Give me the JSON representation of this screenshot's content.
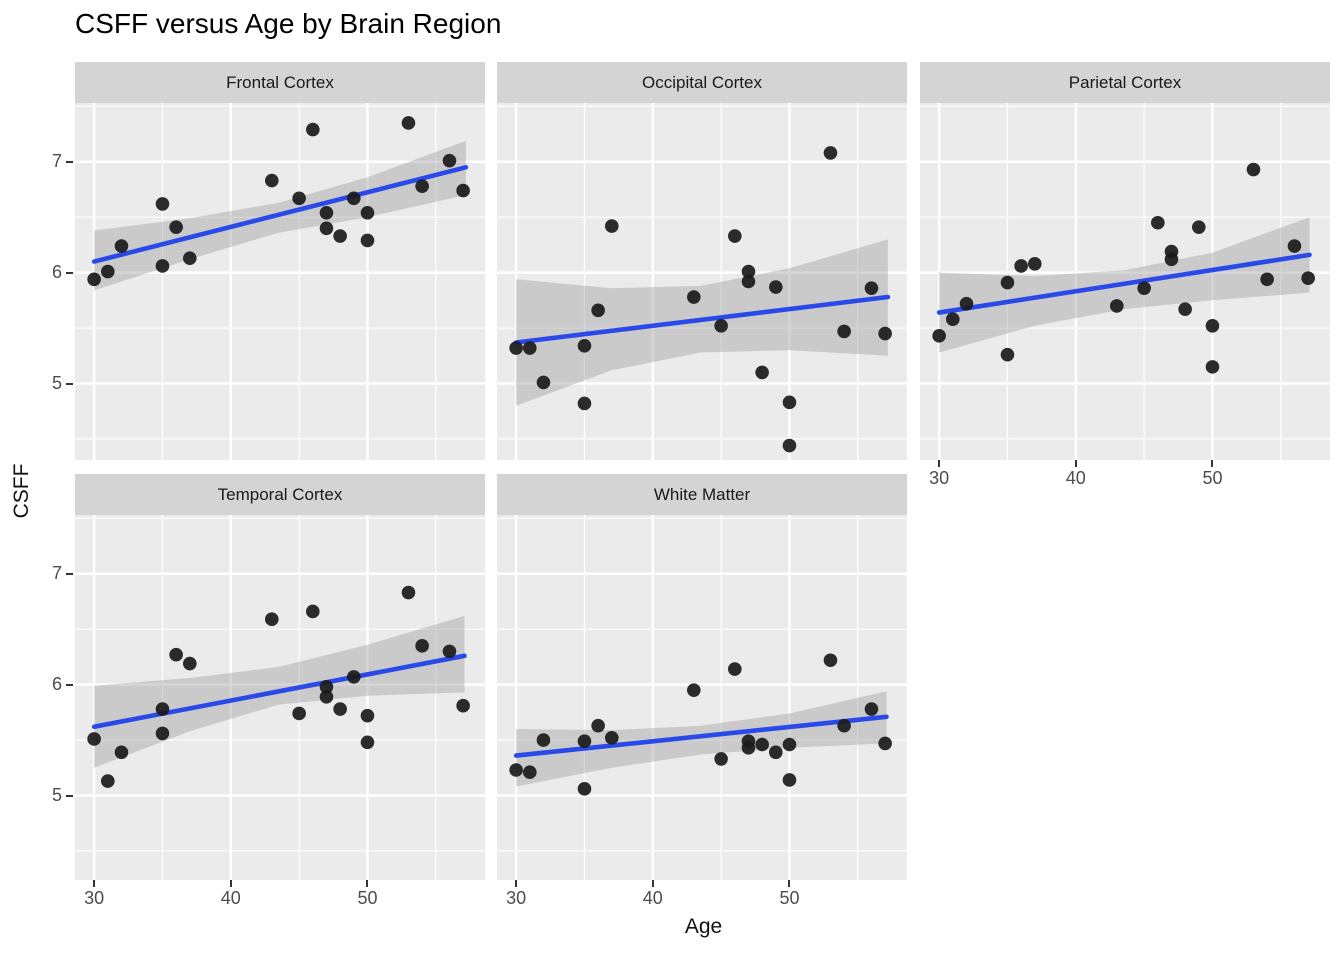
{
  "chart_data": {
    "type": "scatter",
    "title": "CSFF versus Age by Brain Region",
    "xlabel": "Age",
    "ylabel": "CSFF",
    "facet_variable": "Brain Region",
    "legend": "none",
    "grid": true,
    "smooth_line": true,
    "confidence_band": true,
    "x_ticks": [
      30,
      40,
      50
    ],
    "x_minor_ticks": [
      35,
      45,
      55
    ],
    "y_ticks": [
      7,
      6,
      5
    ],
    "y_minor_ticks": [
      7.5,
      6.5,
      5.5,
      4.5
    ],
    "x_domain": [
      28.6,
      58.6
    ],
    "y_domain": [
      4.31,
      7.53
    ],
    "colors": {
      "point": "#1a1a1a",
      "line": "#2949e8",
      "band": "#999999",
      "band_alpha": 0.4,
      "panel_bg": "#ebebeb",
      "strip_bg": "#d4d4d4",
      "gridline": "#ffffff",
      "tick_text": "#4d4d4d",
      "axis_text": "#111111"
    },
    "facets": [
      {
        "label": "Frontal Cortex",
        "points": [
          [
            30,
            5.94
          ],
          [
            31,
            6.01
          ],
          [
            32,
            6.24
          ],
          [
            35,
            6.62
          ],
          [
            35,
            6.06
          ],
          [
            36,
            6.41
          ],
          [
            37,
            6.13
          ],
          [
            43,
            6.83
          ],
          [
            45,
            6.67
          ],
          [
            46,
            7.29
          ],
          [
            47,
            6.54
          ],
          [
            47,
            6.4
          ],
          [
            48,
            6.33
          ],
          [
            49,
            6.67
          ],
          [
            50,
            6.54
          ],
          [
            50,
            6.29
          ],
          [
            53,
            7.35
          ],
          [
            54,
            6.78
          ],
          [
            56,
            7.01
          ],
          [
            57,
            6.74
          ]
        ],
        "line": {
          "x": [
            30,
            57.2
          ],
          "y": [
            6.1,
            6.95
          ]
        },
        "band": {
          "x": [
            30,
            37,
            43.5,
            50,
            57.2
          ],
          "upper": [
            6.38,
            6.49,
            6.63,
            6.86,
            7.19
          ],
          "lower": [
            5.84,
            6.12,
            6.36,
            6.5,
            6.7
          ]
        }
      },
      {
        "label": "Occipital Cortex",
        "points": [
          [
            30,
            5.32
          ],
          [
            31,
            5.32
          ],
          [
            32,
            5.01
          ],
          [
            35,
            5.34
          ],
          [
            35,
            4.82
          ],
          [
            36,
            5.66
          ],
          [
            37,
            6.42
          ],
          [
            43,
            5.78
          ],
          [
            45,
            5.52
          ],
          [
            46,
            6.33
          ],
          [
            47,
            6.01
          ],
          [
            47,
            5.92
          ],
          [
            48,
            5.1
          ],
          [
            49,
            5.87
          ],
          [
            50,
            4.83
          ],
          [
            50,
            4.44
          ],
          [
            53,
            7.08
          ],
          [
            54,
            5.47
          ],
          [
            56,
            5.86
          ],
          [
            57,
            5.45
          ]
        ],
        "line": {
          "x": [
            30,
            57.2
          ],
          "y": [
            5.37,
            5.78
          ]
        },
        "band": {
          "x": [
            30,
            37,
            43.5,
            50,
            57.2
          ],
          "upper": [
            5.94,
            5.86,
            5.88,
            6.04,
            6.3
          ],
          "lower": [
            4.8,
            5.12,
            5.28,
            5.3,
            5.25
          ]
        }
      },
      {
        "label": "Parietal Cortex",
        "points": [
          [
            30,
            5.43
          ],
          [
            31,
            5.58
          ],
          [
            32,
            5.72
          ],
          [
            35,
            5.91
          ],
          [
            35,
            5.26
          ],
          [
            36,
            6.06
          ],
          [
            37,
            6.08
          ],
          [
            43,
            5.7
          ],
          [
            45,
            5.86
          ],
          [
            46,
            6.45
          ],
          [
            47,
            6.19
          ],
          [
            47,
            6.12
          ],
          [
            48,
            5.67
          ],
          [
            49,
            6.41
          ],
          [
            50,
            5.52
          ],
          [
            50,
            5.15
          ],
          [
            53,
            6.93
          ],
          [
            54,
            5.94
          ],
          [
            56,
            6.24
          ],
          [
            57,
            5.95
          ]
        ],
        "line": {
          "x": [
            30,
            57.1
          ],
          "y": [
            5.64,
            6.16
          ]
        },
        "band": {
          "x": [
            30,
            37,
            43.5,
            50,
            57.1
          ],
          "upper": [
            6.0,
            5.97,
            6.02,
            6.18,
            6.5
          ],
          "lower": [
            5.28,
            5.52,
            5.67,
            5.75,
            5.82
          ]
        }
      },
      {
        "label": "Temporal Cortex",
        "points": [
          [
            30,
            5.51
          ],
          [
            31,
            5.13
          ],
          [
            32,
            5.39
          ],
          [
            35,
            5.78
          ],
          [
            35,
            5.56
          ],
          [
            36,
            6.27
          ],
          [
            37,
            6.19
          ],
          [
            43,
            6.59
          ],
          [
            45,
            5.74
          ],
          [
            46,
            6.66
          ],
          [
            47,
            5.98
          ],
          [
            47,
            5.89
          ],
          [
            48,
            5.78
          ],
          [
            49,
            6.07
          ],
          [
            50,
            5.72
          ],
          [
            50,
            5.48
          ],
          [
            53,
            6.83
          ],
          [
            54,
            6.35
          ],
          [
            56,
            6.3
          ],
          [
            57,
            5.81
          ]
        ],
        "line": {
          "x": [
            30,
            57.1
          ],
          "y": [
            5.62,
            6.26
          ]
        },
        "band": {
          "x": [
            30,
            37,
            43.5,
            50,
            57.1
          ],
          "upper": [
            5.99,
            6.06,
            6.16,
            6.36,
            6.62
          ],
          "lower": [
            5.25,
            5.58,
            5.82,
            5.9,
            5.93
          ]
        }
      },
      {
        "label": "White Matter",
        "points": [
          [
            30,
            5.23
          ],
          [
            31,
            5.21
          ],
          [
            32,
            5.5
          ],
          [
            35,
            5.49
          ],
          [
            35,
            5.06
          ],
          [
            36,
            5.63
          ],
          [
            37,
            5.52
          ],
          [
            43,
            5.95
          ],
          [
            45,
            5.33
          ],
          [
            46,
            6.14
          ],
          [
            47,
            5.49
          ],
          [
            47,
            5.43
          ],
          [
            48,
            5.46
          ],
          [
            49,
            5.39
          ],
          [
            50,
            5.46
          ],
          [
            50,
            5.14
          ],
          [
            53,
            6.22
          ],
          [
            54,
            5.63
          ],
          [
            56,
            5.78
          ],
          [
            57,
            5.47
          ]
        ],
        "line": {
          "x": [
            30,
            57.1
          ],
          "y": [
            5.36,
            5.71
          ]
        },
        "band": {
          "x": [
            30,
            37,
            43.5,
            50,
            57.1
          ],
          "upper": [
            5.6,
            5.59,
            5.63,
            5.74,
            5.94
          ],
          "lower": [
            5.08,
            5.25,
            5.37,
            5.43,
            5.47
          ]
        }
      }
    ]
  }
}
